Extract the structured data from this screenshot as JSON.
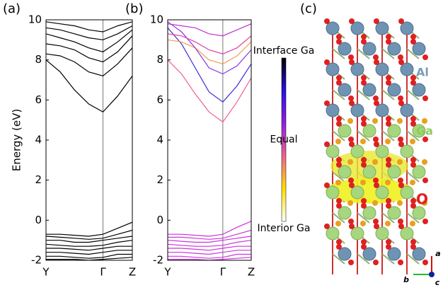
{
  "chart_data": [
    {
      "type": "line",
      "panel_label": "(a)",
      "ylabel": "Energy (eV)",
      "x": [
        0,
        0.165,
        0.33,
        0.495,
        0.66,
        0.83,
        1
      ],
      "xlim": [
        0,
        1
      ],
      "xticks": [
        {
          "value": 0,
          "label": "Y"
        },
        {
          "value": 0.66,
          "label": "Γ"
        },
        {
          "value": 1,
          "label": "Z"
        }
      ],
      "ylim": [
        -2,
        10
      ],
      "yticks": [
        -2,
        0,
        2,
        4,
        6,
        8,
        10
      ],
      "series": [
        {
          "color": "#000000",
          "values": [
            8.0,
            7.4,
            6.5,
            5.8,
            5.4,
            6.2,
            7.2
          ]
        },
        {
          "color": "#000000",
          "values": [
            8.3,
            8.2,
            7.9,
            7.4,
            7.2,
            7.8,
            8.6
          ]
        },
        {
          "color": "#000000",
          "values": [
            8.8,
            8.7,
            8.5,
            8.1,
            7.9,
            8.4,
            9.2
          ]
        },
        {
          "color": "#000000",
          "values": [
            9.3,
            9.1,
            8.9,
            8.6,
            8.4,
            8.9,
            9.5
          ]
        },
        {
          "color": "#000000",
          "values": [
            9.6,
            9.5,
            9.3,
            9.1,
            9.0,
            9.3,
            9.7
          ]
        },
        {
          "color": "#000000",
          "values": [
            9.9,
            9.8,
            9.7,
            9.5,
            9.4,
            9.7,
            9.9
          ]
        },
        {
          "color": "#000000",
          "values": [
            -0.7,
            -0.7,
            -0.75,
            -0.8,
            -0.7,
            -0.4,
            -0.1
          ]
        },
        {
          "color": "#000000",
          "values": [
            -0.8,
            -0.85,
            -0.9,
            -0.95,
            -0.9,
            -0.7,
            -0.5
          ]
        },
        {
          "color": "#000000",
          "values": [
            -1.0,
            -1.0,
            -1.1,
            -1.1,
            -1.0,
            -0.9,
            -0.8
          ]
        },
        {
          "color": "#000000",
          "values": [
            -1.2,
            -1.25,
            -1.3,
            -1.3,
            -1.25,
            -1.1,
            -1.0
          ]
        },
        {
          "color": "#000000",
          "values": [
            -1.4,
            -1.4,
            -1.45,
            -1.5,
            -1.4,
            -1.3,
            -1.3
          ]
        },
        {
          "color": "#000000",
          "values": [
            -1.6,
            -1.6,
            -1.65,
            -1.7,
            -1.6,
            -1.5,
            -1.5
          ]
        },
        {
          "color": "#000000",
          "values": [
            -1.8,
            -1.8,
            -1.85,
            -1.9,
            -1.85,
            -1.7,
            -1.7
          ]
        },
        {
          "color": "#000000",
          "values": [
            -1.95,
            -1.95,
            -1.95,
            -2.0,
            -1.95,
            -1.9,
            -1.85
          ]
        }
      ]
    },
    {
      "type": "line",
      "panel_label": "(b)",
      "x": [
        0,
        0.165,
        0.33,
        0.495,
        0.66,
        0.83,
        1
      ],
      "xlim": [
        0,
        1
      ],
      "xticks": [
        {
          "value": 0,
          "label": "Y"
        },
        {
          "value": 0.66,
          "label": "Γ"
        },
        {
          "value": 1,
          "label": "Z"
        }
      ],
      "ylim": [
        -2,
        10
      ],
      "yticks": [
        -2,
        0,
        2,
        4,
        6,
        8,
        10
      ],
      "series": [
        {
          "color": "#f0609a",
          "values": [
            8.0,
            7.3,
            6.3,
            5.4,
            4.9,
            5.9,
            7.1
          ]
        },
        {
          "color": "#3a2ad8",
          "values": [
            9.6,
            8.8,
            7.6,
            6.4,
            5.9,
            6.7,
            7.8
          ]
        },
        {
          "color": "#f0a050",
          "values": [
            9.0,
            8.9,
            8.6,
            8.0,
            7.8,
            8.2,
            8.9
          ]
        },
        {
          "color": "#9030e0",
          "values": [
            9.9,
            9.4,
            8.6,
            7.6,
            7.3,
            7.7,
            8.5
          ]
        },
        {
          "color": "#e040a0",
          "values": [
            9.3,
            9.2,
            8.9,
            8.5,
            8.3,
            8.6,
            9.2
          ]
        },
        {
          "color": "#c030d0",
          "values": [
            9.8,
            9.7,
            9.6,
            9.3,
            9.2,
            9.5,
            9.8
          ]
        },
        {
          "color": "#cc33dd",
          "values": [
            -0.7,
            -0.7,
            -0.75,
            -0.8,
            -0.7,
            -0.35,
            -0.05
          ]
        },
        {
          "color": "#cc33dd",
          "values": [
            -0.85,
            -0.85,
            -0.9,
            -0.95,
            -0.9,
            -0.7,
            -0.5
          ]
        },
        {
          "color": "#cc33dd",
          "values": [
            -1.0,
            -1.05,
            -1.1,
            -1.1,
            -1.0,
            -0.9,
            -0.8
          ]
        },
        {
          "color": "#cc33dd",
          "values": [
            -1.2,
            -1.25,
            -1.3,
            -1.3,
            -1.25,
            -1.1,
            -1.0
          ]
        },
        {
          "color": "#cc33dd",
          "values": [
            -1.4,
            -1.4,
            -1.45,
            -1.5,
            -1.4,
            -1.3,
            -1.3
          ]
        },
        {
          "color": "#cc33dd",
          "values": [
            -1.6,
            -1.6,
            -1.65,
            -1.7,
            -1.6,
            -1.5,
            -1.5
          ]
        },
        {
          "color": "#cc33dd",
          "values": [
            -1.8,
            -1.8,
            -1.85,
            -1.9,
            -1.85,
            -1.7,
            -1.7
          ]
        },
        {
          "color": "#cc33dd",
          "values": [
            -1.95,
            -1.95,
            -1.95,
            -2.0,
            -1.95,
            -1.9,
            -1.85
          ]
        }
      ],
      "colorbar": {
        "labels": [
          "Interface Ga",
          "Equal",
          "Interior Ga"
        ],
        "colors": [
          "#000000",
          "#2a10e0",
          "#9020e0",
          "#f06090",
          "#ffe000",
          "#ffffff"
        ]
      }
    }
  ],
  "structure": {
    "panel_label": "(c)",
    "species": [
      "Al",
      "Ga",
      "O"
    ],
    "axes": [
      "a",
      "b",
      "c"
    ]
  }
}
